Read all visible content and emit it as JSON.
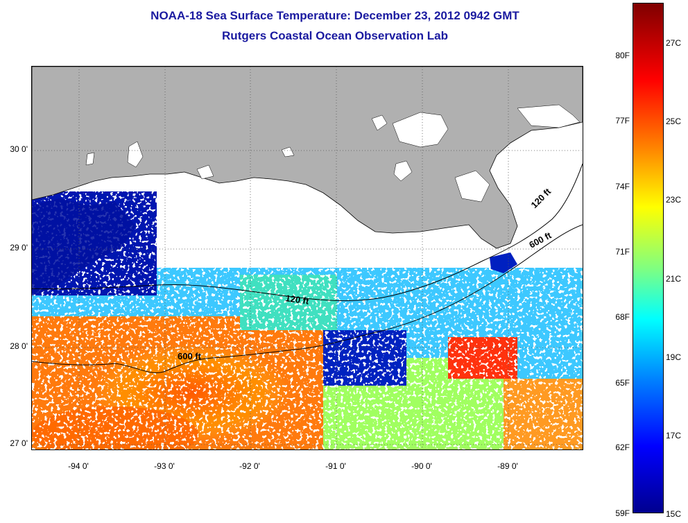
{
  "title": {
    "line1": "NOAA-18 Sea Surface Temperature:  December 23, 2012 0942 GMT",
    "line2": "Rutgers Coastal Ocean Observation Lab"
  },
  "map": {
    "extent": {
      "lon_min": -94.5,
      "lon_max": -88.1,
      "lat_min": 26.95,
      "lat_max": 30.85
    },
    "lat_labels": [
      "30 0'",
      "29 0'",
      "28 0'",
      "27 0'"
    ],
    "lon_labels": [
      "-94 0'",
      "-93 0'",
      "-92 0'",
      "-91 0'",
      "-90 0'",
      "-89 0'"
    ],
    "contour_labels": [
      "120 ft",
      "600 ft",
      "120 ft",
      "600 ft"
    ],
    "colors": {
      "land": "#b0b0b0",
      "cloud": "#ffffff",
      "grid": "#555555"
    }
  },
  "colorbar": {
    "fahrenheit_labels": [
      "80F",
      "77F",
      "74F",
      "71F",
      "68F",
      "65F",
      "62F",
      "59F"
    ],
    "celsius_labels": [
      "27C",
      "25C",
      "23C",
      "21C",
      "19C",
      "17C",
      "15C"
    ],
    "min_c": 15,
    "max_c": 28.3
  }
}
